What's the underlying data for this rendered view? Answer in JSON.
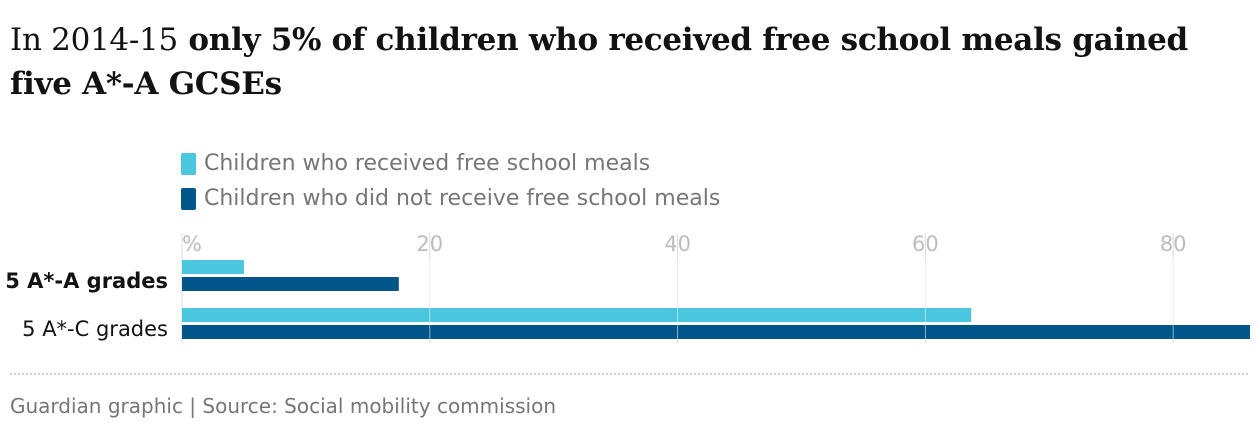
{
  "title": {
    "lead": "In 2014-15",
    "bold": "only 5% of children who received free school meals gained five A*-A GCSEs"
  },
  "colors": {
    "fsm": "#4bc6df",
    "non_fsm": "#005689",
    "gridline": "#dcdcdc",
    "tick_text": "#bdbdbd"
  },
  "chart_data": {
    "type": "bar",
    "orientation": "horizontal",
    "categories": [
      "5 A*-A grades",
      "5 A*-C grades"
    ],
    "category_bold": [
      true,
      false
    ],
    "series": [
      {
        "name": "Children who received free school meals",
        "values": [
          5,
          63.7
        ]
      },
      {
        "name": "Children who did not receive free school meals",
        "values": [
          17.5,
          86.2
        ]
      }
    ],
    "xlim": [
      0,
      86.2
    ],
    "ticks": [
      0,
      20,
      40,
      60,
      80
    ],
    "tick_labels": [
      "%",
      "20",
      "40",
      "60",
      "80"
    ],
    "grid": true,
    "legend": "top-left"
  },
  "footer": {
    "source": "Guardian graphic | Source: Social mobility commission"
  }
}
